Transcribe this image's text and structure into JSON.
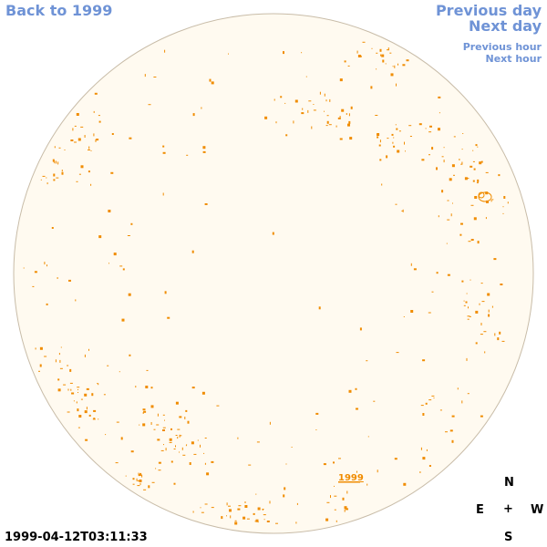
{
  "nav": {
    "back": "Back to 1999",
    "previous_day": "Previous day",
    "next_day": "Next day",
    "previous_hour": "Previous hour",
    "next_hour": "Next hour"
  },
  "year_label": "1999",
  "compass": {
    "north": "N",
    "east": "E",
    "center": "+",
    "west": "W",
    "south": "S"
  },
  "timestamp": "1999-04-12T03:11:33",
  "colors": {
    "disk_fill": "#fffaf0",
    "disk_edge": "#c8bca8",
    "feature": "#f08c00",
    "link": "#6f93d6"
  }
}
